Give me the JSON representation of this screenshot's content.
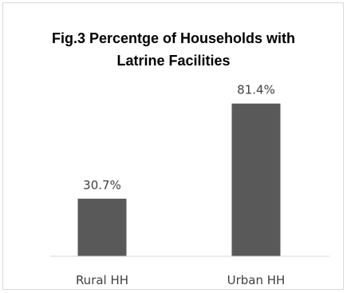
{
  "chart_data": {
    "type": "bar",
    "title_lines": [
      "Fig.3 Percentge of Households with",
      "Latrine Facilities"
    ],
    "categories": [
      "Rural HH",
      "Urban HH"
    ],
    "values": [
      30.7,
      81.4
    ],
    "data_labels": [
      "30.7%",
      "81.4%"
    ],
    "ylim": [
      0,
      100
    ],
    "grid": false,
    "legend": "none",
    "bar_color": "#595959"
  }
}
